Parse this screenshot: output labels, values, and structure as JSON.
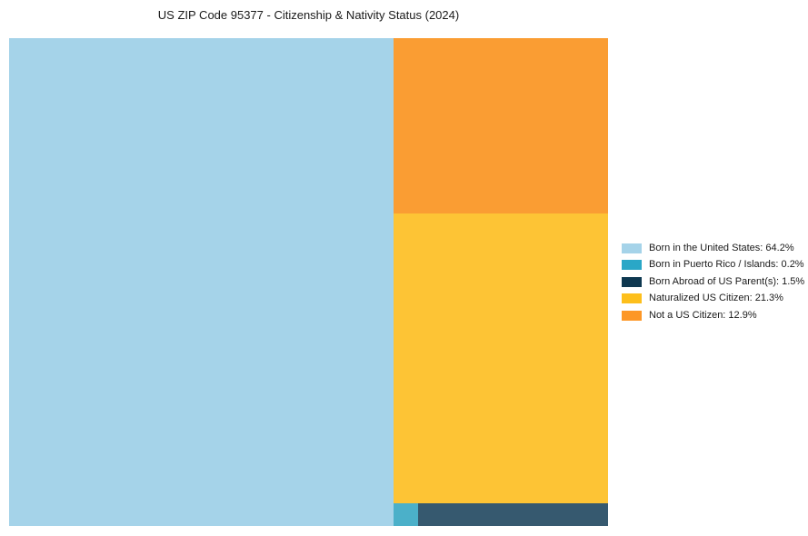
{
  "title": "US ZIP Code 95377 - Citizenship & Nativity Status (2024)",
  "chart_data": {
    "type": "treemap",
    "title": "US ZIP Code 95377 - Citizenship & Nativity Status (2024)",
    "unit": "%",
    "background_color": "#ffffff",
    "text_color": "#1a1a1a",
    "legend_position": "right-center",
    "items": [
      {
        "id": "born_us",
        "label": "Born in the United States",
        "value": 64.2,
        "legend_text": "Born in the United States: 64.2%",
        "legend_color": "#a5d3e9",
        "chart_color": "#a5d3e9"
      },
      {
        "id": "born_pr",
        "label": "Born in Puerto Rico / Islands",
        "value": 0.2,
        "legend_text": "Born in Puerto Rico / Islands: 0.2%",
        "legend_color": "#2aa7c7",
        "chart_color": "#4bb0c9"
      },
      {
        "id": "born_abroad",
        "label": "Born Abroad of US Parent(s)",
        "value": 1.5,
        "legend_text": "Born Abroad of US Parent(s): 1.5%",
        "legend_color": "#0e3850",
        "chart_color": "#36596f"
      },
      {
        "id": "naturalized",
        "label": "Naturalized US Citizen",
        "value": 21.3,
        "legend_text": "Naturalized US Citizen: 21.3%",
        "legend_color": "#fdbf1c",
        "chart_color": "#fdc435"
      },
      {
        "id": "not_citizen",
        "label": "Not a US Citizen",
        "value": 12.9,
        "legend_text": "Not a US Citizen: 12.9%",
        "legend_color": "#fd9726",
        "chart_color": "#fa9d33"
      }
    ],
    "layout": {
      "left": "born_us",
      "right_top_to_bottom": [
        "not_citizen",
        "naturalized"
      ],
      "bottom_row_left_to_right": [
        "born_pr",
        "born_abroad"
      ]
    }
  }
}
